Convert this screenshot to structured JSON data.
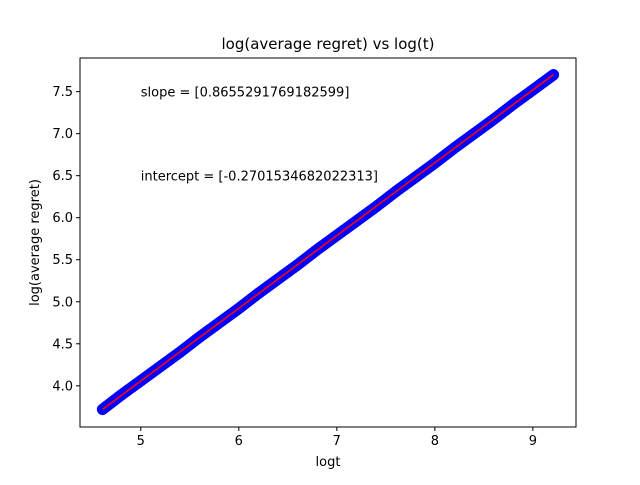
{
  "chart_data": {
    "type": "scatter",
    "title": "log(average regret) vs log(t)",
    "xlabel": "logt",
    "ylabel": "log(average regret)",
    "xlim": [
      4.38,
      9.44
    ],
    "ylim": [
      3.51,
      7.9
    ],
    "xticks": [
      5,
      6,
      7,
      8,
      9
    ],
    "xtick_labels": [
      "5",
      "6",
      "7",
      "8",
      "9"
    ],
    "yticks": [
      4.0,
      4.5,
      5.0,
      5.5,
      6.0,
      6.5,
      7.0,
      7.5
    ],
    "ytick_labels": [
      "4.0",
      "4.5",
      "5.0",
      "5.5",
      "6.0",
      "6.5",
      "7.0",
      "7.5"
    ],
    "grid": false,
    "legend": "none",
    "series": [
      {
        "kind": "scatter",
        "color": "#0000ff",
        "x": [
          4.61,
          4.8,
          5.0,
          5.2,
          5.4,
          5.6,
          5.8,
          6.0,
          6.2,
          6.4,
          6.6,
          6.8,
          7.0,
          7.2,
          7.4,
          7.6,
          7.8,
          8.0,
          8.2,
          8.4,
          8.6,
          8.8,
          9.0,
          9.21
        ],
        "y": [
          3.72,
          3.89,
          4.06,
          4.23,
          4.4,
          4.58,
          4.75,
          4.92,
          5.1,
          5.27,
          5.44,
          5.62,
          5.79,
          5.96,
          6.13,
          6.31,
          6.48,
          6.65,
          6.83,
          7.0,
          7.17,
          7.35,
          7.52,
          7.7
        ]
      },
      {
        "kind": "line",
        "color": "#ff0000",
        "slope": 0.8655291769182599,
        "intercept": -0.2701534682022313,
        "x": [
          4.61,
          9.21
        ]
      }
    ],
    "annotations": [
      {
        "text": "slope = [0.8655291769182599]",
        "x": 5.0,
        "y": 7.5
      },
      {
        "text": "intercept = [-0.2701534682022313]",
        "x": 5.0,
        "y": 6.5
      }
    ]
  }
}
